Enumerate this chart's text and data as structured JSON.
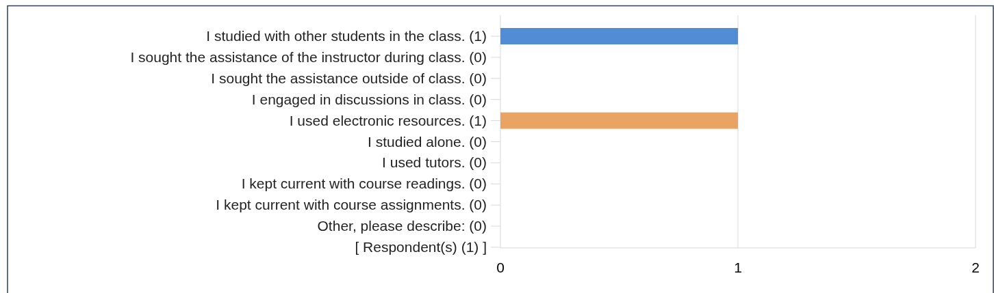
{
  "chart_data": {
    "type": "bar",
    "orientation": "horizontal",
    "categories": [
      "I studied with other students in the class. (1)",
      "I sought the assistance of the instructor during class. (0)",
      "I sought the assistance outside of class. (0)",
      "I engaged in discussions in class. (0)",
      "I used electronic resources. (1)",
      "I studied alone. (0)",
      "I used tutors. (0)",
      "I kept current with course readings. (0)",
      "I kept current with course assignments. (0)",
      "Other, please describe: (0)",
      "[ Respondent(s) (1) ]"
    ],
    "values": [
      1,
      0,
      0,
      0,
      1,
      0,
      0,
      0,
      0,
      0,
      0
    ],
    "colors": [
      "#528cd4",
      "#c0504d",
      "#9bbb59",
      "#8064a2",
      "#e9a463",
      "#4bacc6",
      "#f79646",
      "#2c4d75",
      "#772c2a",
      "#5f7530",
      "#4d3b62"
    ],
    "xlim": [
      0,
      2
    ],
    "xticks": [
      0,
      1,
      2
    ],
    "grid": "x"
  }
}
